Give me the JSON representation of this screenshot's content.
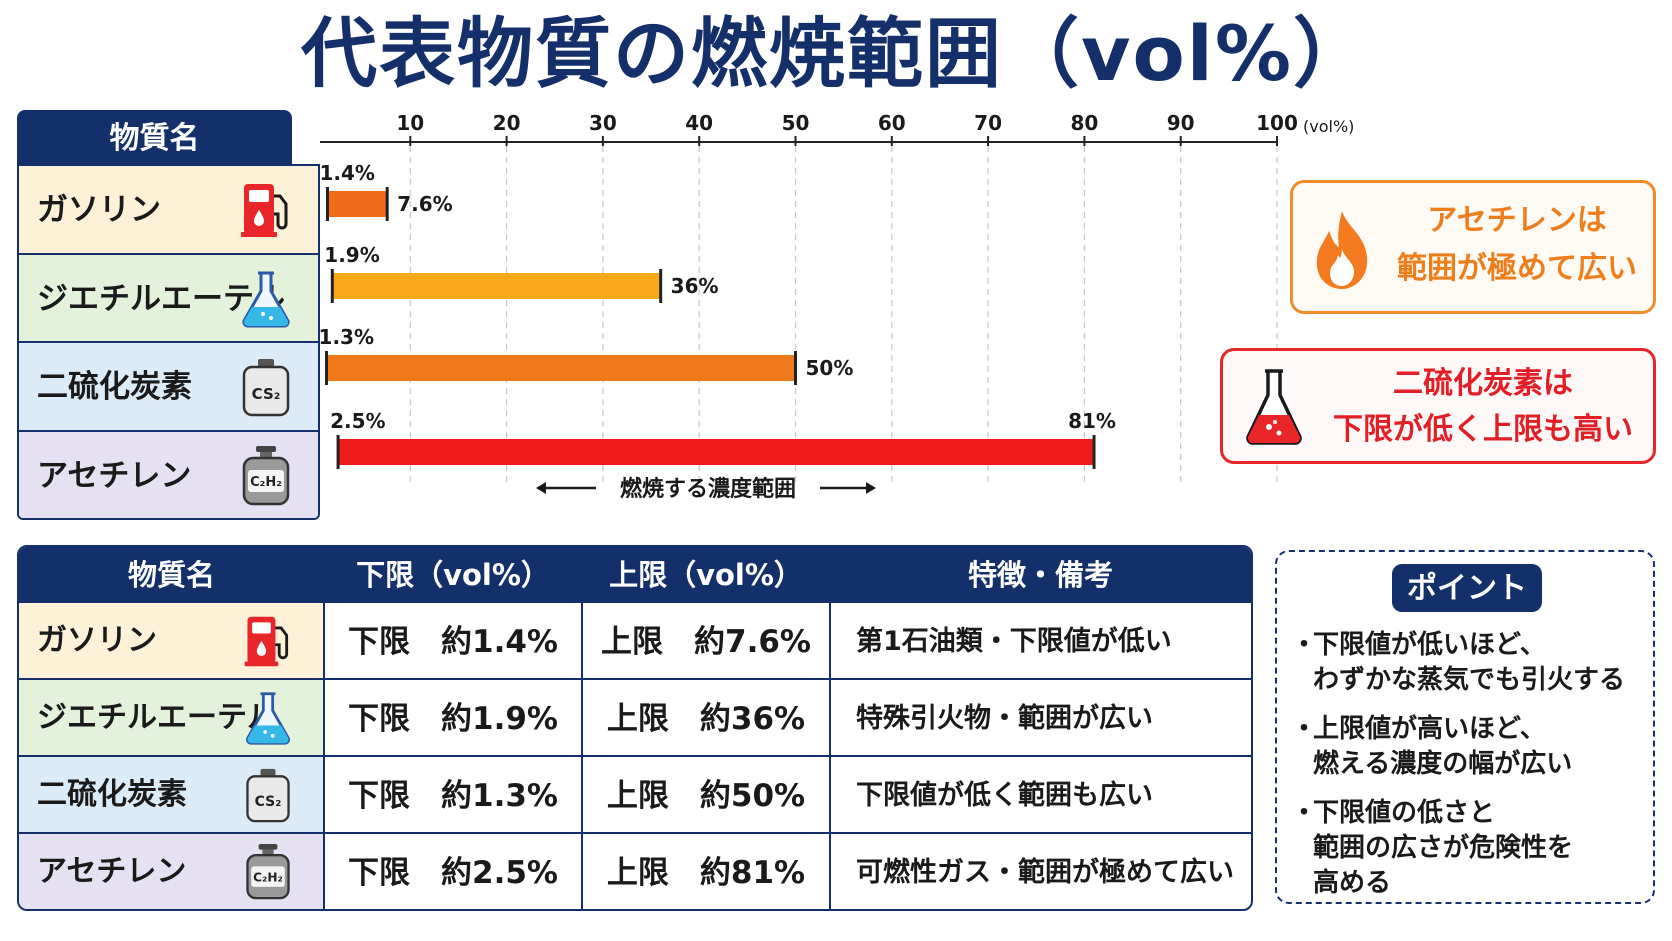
{
  "title": "代表物質の燃焼範囲（vol%）",
  "substance_header": "物質名",
  "substances": [
    {
      "name": "ガソリン",
      "icon": "fuel-pump-icon",
      "lower_label": "1.4%",
      "upper_label": "7.6%",
      "table_lower": "下限　約1.4%",
      "table_upper": "上限　約7.6%",
      "note": "第1石油類・下限値が低い"
    },
    {
      "name": "ジエチルエーテル",
      "icon": "flask-icon",
      "lower_label": "1.9%",
      "upper_label": "36%",
      "table_lower": "下限　約1.9%",
      "table_upper": "上限　約36%",
      "note": "特殊引火物・範囲が広い"
    },
    {
      "name": "二硫化炭素",
      "icon": "cs2-bottle-icon",
      "formula": "CS₂",
      "lower_label": "1.3%",
      "upper_label": "50%",
      "table_lower": "下限　約1.3%",
      "table_upper": "上限　約50%",
      "note": "下限値が低く範囲も広い"
    },
    {
      "name": "アセチレン",
      "icon": "c2h2-cylinder-icon",
      "formula": "C₂H₂",
      "lower_label": "2.5%",
      "upper_label": "81%",
      "table_lower": "下限　約2.5%",
      "table_upper": "上限　約81%",
      "note": "可燃性ガス・範囲が極めて広い"
    }
  ],
  "chart_data": {
    "type": "bar",
    "orientation": "horizontal-range",
    "categories": [
      "ガソリン",
      "ジエチルエーテル",
      "二硫化炭素",
      "アセチレン"
    ],
    "series": [
      {
        "values": [
          [
            1.4,
            7.6
          ],
          [
            1.9,
            36
          ],
          [
            1.3,
            50
          ],
          [
            2.5,
            81
          ]
        ]
      }
    ],
    "bar_colors": [
      "#f26a1b",
      "#f7a81b",
      "#f07a1a",
      "#ee1c1c"
    ],
    "x_ticks": [
      0,
      10,
      20,
      30,
      40,
      50,
      60,
      70,
      80,
      90,
      100
    ],
    "xlim": [
      0,
      100
    ],
    "x_unit": "(vol%)",
    "grid": "vertical-dashed",
    "annotation": "燃焼する濃度範囲"
  },
  "callouts": [
    {
      "icon": "flame-icon",
      "lines": [
        "アセチレンは",
        "範囲が極めて広い"
      ],
      "color": "#ee7d1b"
    },
    {
      "icon": "flask-icon",
      "lines": [
        "二硫化炭素は",
        "下限が低く上限も高い"
      ],
      "color": "#e21f26"
    }
  ],
  "table": {
    "headers": [
      "物質名",
      "下限（vol%）",
      "上限（vol%）",
      "特徴・備考"
    ]
  },
  "point": {
    "title": "ポイント",
    "bullet": "・",
    "items": [
      [
        "下限値が低いほど、",
        "わずかな蒸気でも引火する"
      ],
      [
        "上限値が高いほど、",
        "燃える濃度の幅が広い"
      ],
      [
        "下限値の低さと",
        "範囲の広さが危険性を",
        "高める"
      ]
    ]
  },
  "colors": {
    "navy": "#14306b",
    "orange": "#f28c2a",
    "red": "#e8262a"
  }
}
